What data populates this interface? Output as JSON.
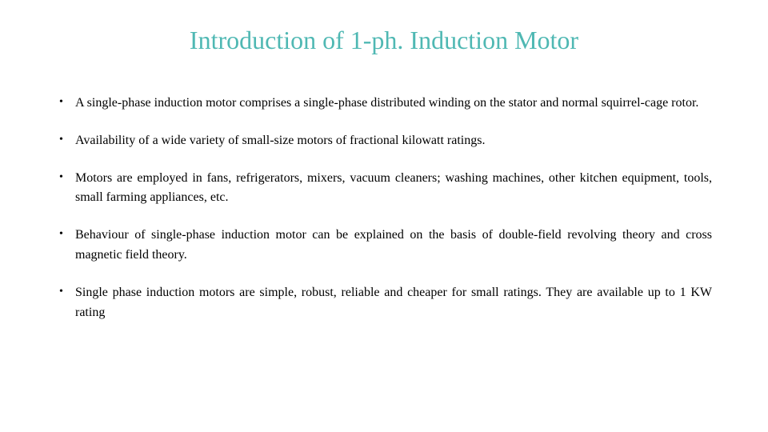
{
  "slide": {
    "title": "Introduction of 1-ph. Induction Motor",
    "title_color": "#4fb8b3",
    "title_fontsize": 32,
    "body_fontsize": 16,
    "body_color": "#000000",
    "background_color": "#ffffff",
    "bullets": [
      "A single-phase induction motor comprises a single-phase distributed winding on the stator and normal squirrel-cage rotor.",
      "Availability of a wide variety of small-size motors of fractional kilowatt ratings.",
      "Motors are employed in fans, refrigerators, mixers, vacuum cleaners; washing machines, other kitchen equipment, tools, small farming appliances, etc.",
      "Behaviour of single-phase induction motor can be explained on the basis of double-field revolving theory and cross magnetic field theory.",
      "Single phase induction motors are simple, robust, reliable and cheaper for small ratings. They are available up to 1 KW rating"
    ]
  }
}
